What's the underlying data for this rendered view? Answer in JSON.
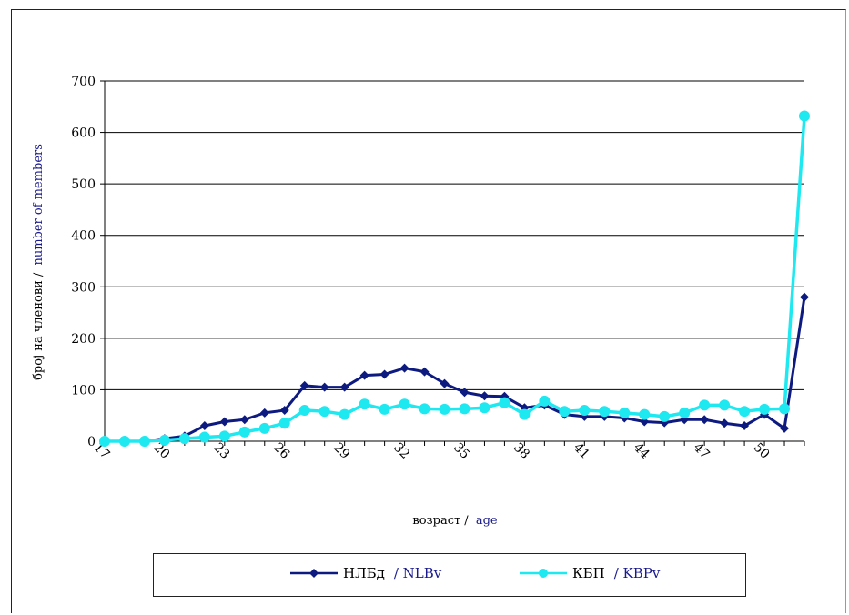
{
  "chart_data": {
    "type": "line",
    "xlabel_cyr": "возраст /",
    "xlabel_lat": "age",
    "ylabel_cyr": "број на членови /",
    "ylabel_lat": "number of members",
    "ylim": [
      0,
      700
    ],
    "yticks": [
      0,
      100,
      200,
      300,
      400,
      500,
      600,
      700
    ],
    "xlim": [
      17,
      52
    ],
    "xticks": [
      17,
      20,
      23,
      26,
      29,
      32,
      35,
      38,
      41,
      44,
      47,
      50
    ],
    "grid": true,
    "legend_position": "bottom",
    "x": [
      17,
      18,
      19,
      20,
      21,
      22,
      23,
      24,
      25,
      26,
      27,
      28,
      29,
      30,
      31,
      32,
      33,
      34,
      35,
      36,
      37,
      38,
      39,
      40,
      41,
      42,
      43,
      44,
      45,
      46,
      47,
      48,
      49,
      50,
      51,
      52
    ],
    "series": [
      {
        "name_cyr": "НЛБд",
        "name_lat": "/ NLBv",
        "color": "#0d1a80",
        "marker": "diamond",
        "values": [
          0,
          0,
          0,
          5,
          10,
          30,
          38,
          42,
          55,
          60,
          108,
          105,
          105,
          128,
          130,
          142,
          135,
          112,
          95,
          88,
          87,
          65,
          70,
          52,
          48,
          48,
          45,
          38,
          36,
          42,
          42,
          35,
          30,
          52,
          25,
          280
        ]
      },
      {
        "name_cyr": "КБП",
        "name_lat": "/ KBPv",
        "color": "#1ee8f0",
        "marker": "circle",
        "values": [
          0,
          0,
          0,
          2,
          5,
          8,
          10,
          18,
          25,
          35,
          60,
          58,
          52,
          72,
          62,
          72,
          63,
          62,
          63,
          65,
          75,
          52,
          78,
          58,
          60,
          58,
          55,
          52,
          48,
          55,
          70,
          70,
          58,
          62,
          63,
          632
        ]
      }
    ]
  }
}
